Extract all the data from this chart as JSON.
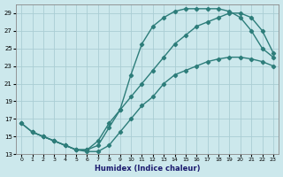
{
  "xlabel": "Humidex (Indice chaleur)",
  "bg_color": "#cce8ec",
  "grid_color": "#aacdd4",
  "line_color": "#2d7d7a",
  "marker": "D",
  "markersize": 2.2,
  "linewidth": 1.0,
  "xlim": [
    -0.5,
    23.5
  ],
  "ylim": [
    13,
    30
  ],
  "xticks": [
    0,
    1,
    2,
    3,
    4,
    5,
    6,
    7,
    8,
    9,
    10,
    11,
    12,
    13,
    14,
    15,
    16,
    17,
    18,
    19,
    20,
    21,
    22,
    23
  ],
  "yticks": [
    13,
    15,
    17,
    19,
    21,
    23,
    25,
    27,
    29
  ],
  "line1_x": [
    0,
    1,
    2,
    3,
    4,
    5,
    6,
    7,
    8,
    9,
    10,
    11,
    12,
    13,
    14,
    15,
    16,
    17,
    18,
    19,
    20,
    21,
    22,
    23
  ],
  "line1_y": [
    16.5,
    15.5,
    15.0,
    14.5,
    14.0,
    13.5,
    13.3,
    13.3,
    14.0,
    15.5,
    17.0,
    18.5,
    19.5,
    21.0,
    22.0,
    22.5,
    23.0,
    23.5,
    23.8,
    24.0,
    24.0,
    23.8,
    23.5,
    23.0
  ],
  "line2_x": [
    0,
    1,
    2,
    3,
    4,
    5,
    6,
    7,
    8,
    9,
    10,
    11,
    12,
    13,
    14,
    15,
    16,
    17,
    18,
    19,
    20,
    21,
    22,
    23
  ],
  "line2_y": [
    16.5,
    15.5,
    15.0,
    14.5,
    14.0,
    13.5,
    13.5,
    14.0,
    16.0,
    18.0,
    22.0,
    25.5,
    27.5,
    28.5,
    29.2,
    29.5,
    29.5,
    29.5,
    29.5,
    29.2,
    28.5,
    27.0,
    25.0,
    24.0
  ],
  "line3_x": [
    1,
    2,
    3,
    4,
    5,
    6,
    7,
    8,
    9,
    10,
    11,
    12,
    13,
    14,
    15,
    16,
    17,
    18,
    19,
    20,
    21,
    22,
    23
  ],
  "line3_y": [
    15.5,
    15.0,
    14.5,
    14.0,
    13.5,
    13.5,
    14.5,
    16.5,
    18.0,
    19.5,
    21.0,
    22.5,
    24.0,
    25.5,
    26.5,
    27.5,
    28.0,
    28.5,
    29.0,
    29.0,
    28.5,
    27.0,
    24.5
  ]
}
